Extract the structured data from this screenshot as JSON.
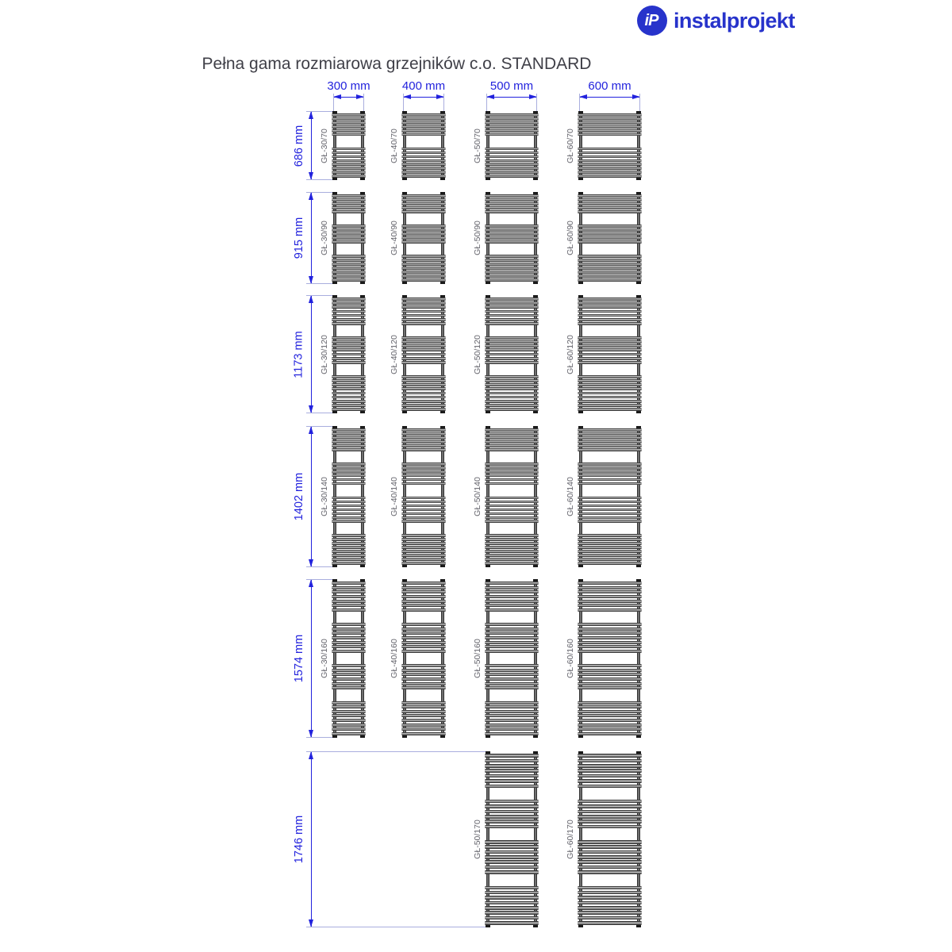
{
  "logo": {
    "icon_text": "iP",
    "brand": "instalprojekt"
  },
  "title": "Pełna gama rozmiarowa grzejników c.o. STANDARD",
  "columns": [
    {
      "label": "300 mm",
      "width_mm": 300
    },
    {
      "label": "400 mm",
      "width_mm": 400
    },
    {
      "label": "500 mm",
      "width_mm": 500
    },
    {
      "label": "600 mm",
      "width_mm": 600
    }
  ],
  "rows": [
    {
      "label": "686 mm",
      "height_mm": 686,
      "pattern": [
        6,
        8
      ]
    },
    {
      "label": "915 mm",
      "height_mm": 915,
      "pattern": [
        5,
        5,
        7
      ]
    },
    {
      "label": "1173 mm",
      "height_mm": 1173,
      "pattern": [
        7,
        7,
        9
      ]
    },
    {
      "label": "1402 mm",
      "height_mm": 1402,
      "pattern": [
        6,
        6,
        7,
        8
      ]
    },
    {
      "label": "1574 mm",
      "height_mm": 1574,
      "pattern": [
        7,
        7,
        6,
        8
      ]
    },
    {
      "label": "1746 mm",
      "height_mm": 1746,
      "pattern": [
        7,
        6,
        7,
        8
      ]
    }
  ],
  "radiators": [
    {
      "label": "GŁ-30/70",
      "col": 0,
      "row": 0
    },
    {
      "label": "GŁ-40/70",
      "col": 1,
      "row": 0
    },
    {
      "label": "GŁ-50/70",
      "col": 2,
      "row": 0
    },
    {
      "label": "GŁ-60/70",
      "col": 3,
      "row": 0
    },
    {
      "label": "GŁ-30/90",
      "col": 0,
      "row": 1
    },
    {
      "label": "GŁ-40/90",
      "col": 1,
      "row": 1
    },
    {
      "label": "GŁ-50/90",
      "col": 2,
      "row": 1
    },
    {
      "label": "GŁ-60/90",
      "col": 3,
      "row": 1
    },
    {
      "label": "GŁ-30/120",
      "col": 0,
      "row": 2
    },
    {
      "label": "GŁ-40/120",
      "col": 1,
      "row": 2
    },
    {
      "label": "GŁ-50/120",
      "col": 2,
      "row": 2
    },
    {
      "label": "GŁ-60/120",
      "col": 3,
      "row": 2
    },
    {
      "label": "GŁ-30/140",
      "col": 0,
      "row": 3
    },
    {
      "label": "GŁ-40/140",
      "col": 1,
      "row": 3
    },
    {
      "label": "GŁ-50/140",
      "col": 2,
      "row": 3
    },
    {
      "label": "GŁ-60/140",
      "col": 3,
      "row": 3
    },
    {
      "label": "GŁ-30/160",
      "col": 0,
      "row": 4
    },
    {
      "label": "GŁ-40/160",
      "col": 1,
      "row": 4
    },
    {
      "label": "GŁ-50/160",
      "col": 2,
      "row": 4
    },
    {
      "label": "GŁ-60/160",
      "col": 3,
      "row": 4
    },
    {
      "label": "GŁ-50/170",
      "col": 2,
      "row": 5
    },
    {
      "label": "GŁ-60/170",
      "col": 3,
      "row": 5
    }
  ],
  "colors": {
    "dimension_blue": "#2222dd",
    "extension_line": "#a9aede",
    "logo_blue": "#2733cb",
    "radiator_ink": "#1b1b1b",
    "label_gray": "#63636b"
  }
}
